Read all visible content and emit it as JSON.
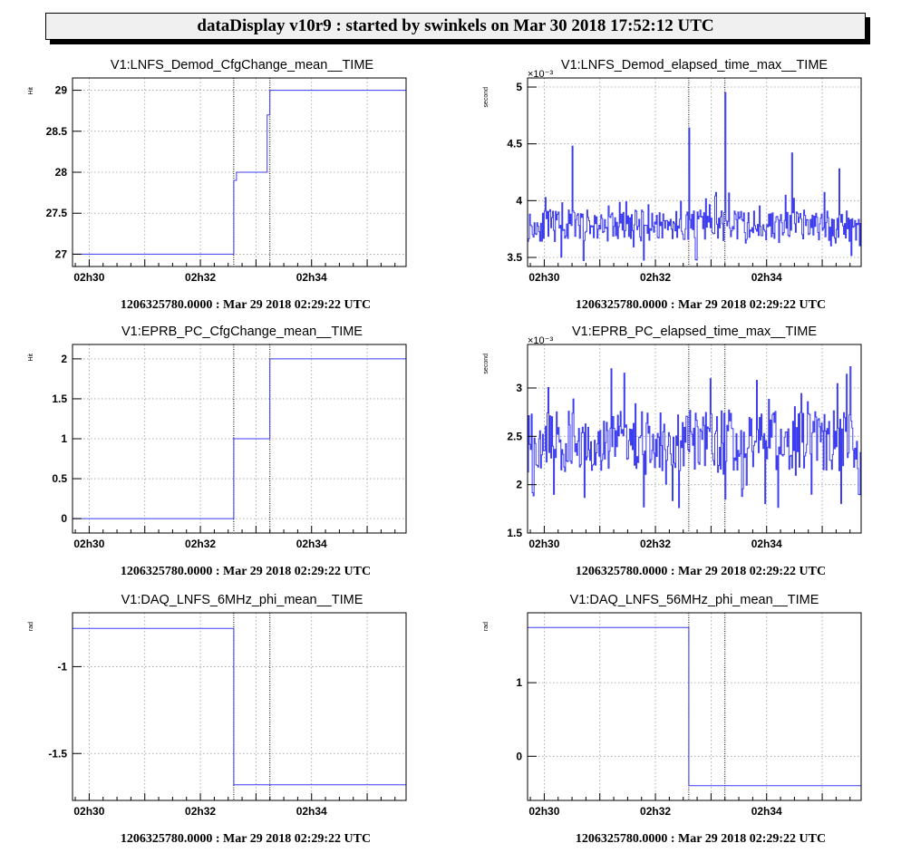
{
  "banner": "dataDisplay v10r9 : started by swinkels on Mar 30 2018 17:52:12 UTC",
  "colors": {
    "series": "#3c3cf0",
    "grid": "#9a9a9a",
    "axis": "#000000"
  },
  "chart_data": [
    {
      "type": "line",
      "title": "V1:LNFS_Demod_CfgChange_mean__TIME",
      "ylabel": "Hit",
      "xlabel": "1206325780.0000 : Mar 29 2018 02:29:22 UTC",
      "x_ticks": [
        "02h30",
        "02h32",
        "02h34"
      ],
      "xlim": [
        9.7,
        15.7
      ],
      "ylim": [
        26.85,
        29.15
      ],
      "yticks": [
        {
          "v": 27,
          "l": "27"
        },
        {
          "v": 27.5,
          "l": "27.5"
        },
        {
          "v": 28,
          "l": "28"
        },
        {
          "v": 28.5,
          "l": "28.5"
        },
        {
          "v": 29,
          "l": "29"
        }
      ],
      "markers": [
        12.6,
        13.25
      ],
      "series": [
        {
          "x": [
            9.7,
            12.6,
            12.6,
            12.65,
            12.65,
            12.72,
            12.72,
            13.2,
            13.2,
            13.25,
            13.25,
            15.7
          ],
          "y": [
            27,
            27,
            27.9,
            27.9,
            28,
            28,
            28,
            28,
            28.7,
            28.7,
            29,
            29
          ]
        }
      ]
    },
    {
      "type": "line",
      "title": "V1:LNFS_Demod_elapsed_time_max__TIME",
      "ylabel": "second",
      "xlabel": "1206325780.0000 : Mar 29 2018 02:29:22 UTC",
      "multiplier": "×10⁻³",
      "x_ticks": [
        "02h30",
        "02h32",
        "02h34"
      ],
      "xlim": [
        9.7,
        15.7
      ],
      "ylim": [
        3.42,
        5.08
      ],
      "yticks": [
        {
          "v": 3.5,
          "l": "3.5"
        },
        {
          "v": 4,
          "l": "4"
        },
        {
          "v": 4.5,
          "l": "4.5"
        },
        {
          "v": 5,
          "l": "5"
        }
      ],
      "markers": [
        12.6,
        13.25
      ],
      "series": [
        {
          "noise": {
            "base": 3.78,
            "amp": 0.14,
            "seed": 11,
            "spikes": [
              [
                10.5,
                4.48
              ],
              [
                12.6,
                4.64
              ],
              [
                13.25,
                4.95
              ],
              [
                14.45,
                4.42
              ],
              [
                15.3,
                4.28
              ]
            ]
          }
        }
      ]
    },
    {
      "type": "line",
      "title": "V1:EPRB_PC_CfgChange_mean__TIME",
      "ylabel": "Hit",
      "xlabel": "1206325780.0000 : Mar 29 2018 02:29:22 UTC",
      "x_ticks": [
        "02h30",
        "02h32",
        "02h34"
      ],
      "xlim": [
        9.7,
        15.7
      ],
      "ylim": [
        -0.18,
        2.18
      ],
      "yticks": [
        {
          "v": 0,
          "l": "0"
        },
        {
          "v": 0.5,
          "l": "0.5"
        },
        {
          "v": 1,
          "l": "1"
        },
        {
          "v": 1.5,
          "l": "1.5"
        },
        {
          "v": 2,
          "l": "2"
        }
      ],
      "markers": [
        12.6,
        13.25
      ],
      "series": [
        {
          "x": [
            9.7,
            12.6,
            12.6,
            13.25,
            13.25,
            15.7
          ],
          "y": [
            0,
            0,
            1,
            1,
            2,
            2
          ]
        }
      ]
    },
    {
      "type": "line",
      "title": "V1:EPRB_PC_elapsed_time_max__TIME",
      "ylabel": "second",
      "xlabel": "1206325780.0000 : Mar 29 2018 02:29:22 UTC",
      "multiplier": "×10⁻³",
      "x_ticks": [
        "02h30",
        "02h32",
        "02h34"
      ],
      "xlim": [
        9.7,
        15.7
      ],
      "ylim": [
        1.5,
        3.45
      ],
      "yticks": [
        {
          "v": 1.5,
          "l": "1.5"
        },
        {
          "v": 2,
          "l": "2"
        },
        {
          "v": 2.5,
          "l": "2.5"
        },
        {
          "v": 3,
          "l": "3"
        }
      ],
      "markers": [
        12.6,
        13.25
      ],
      "series": [
        {
          "noise": {
            "base": 2.45,
            "amp": 0.32,
            "seed": 29,
            "spikes": [
              [
                11.2,
                3.2
              ],
              [
                13.25,
                1.85
              ],
              [
                15.5,
                3.22
              ],
              [
                14.8,
                1.9
              ]
            ]
          }
        }
      ]
    },
    {
      "type": "line",
      "title": "V1:DAQ_LNFS_6MHz_phi_mean__TIME",
      "ylabel": "rad",
      "xlabel": "1206325780.0000 : Mar 29 2018 02:29:22 UTC",
      "x_ticks": [
        "02h30",
        "02h32",
        "02h34"
      ],
      "xlim": [
        9.7,
        15.7
      ],
      "ylim": [
        -1.77,
        -0.69
      ],
      "yticks": [
        {
          "v": -1,
          "l": "-1"
        },
        {
          "v": -1.5,
          "l": "-1.5"
        }
      ],
      "markers": [
        12.6,
        13.25
      ],
      "series": [
        {
          "x": [
            9.7,
            12.6,
            12.6,
            15.7
          ],
          "y": [
            -0.78,
            -0.78,
            -1.68,
            -1.68
          ]
        }
      ]
    },
    {
      "type": "line",
      "title": "V1:DAQ_LNFS_56MHz_phi_mean__TIME",
      "ylabel": "rad",
      "xlabel": "1206325780.0000 : Mar 29 2018 02:29:22 UTC",
      "x_ticks": [
        "02h30",
        "02h32",
        "02h34"
      ],
      "xlim": [
        9.7,
        15.7
      ],
      "ylim": [
        -0.6,
        1.95
      ],
      "yticks": [
        {
          "v": 0,
          "l": "0"
        },
        {
          "v": 1,
          "l": "1"
        }
      ],
      "markers": [
        12.6,
        13.25
      ],
      "series": [
        {
          "x": [
            9.7,
            12.6,
            12.6,
            15.7
          ],
          "y": [
            1.75,
            1.75,
            -0.4,
            -0.4
          ]
        }
      ]
    }
  ]
}
